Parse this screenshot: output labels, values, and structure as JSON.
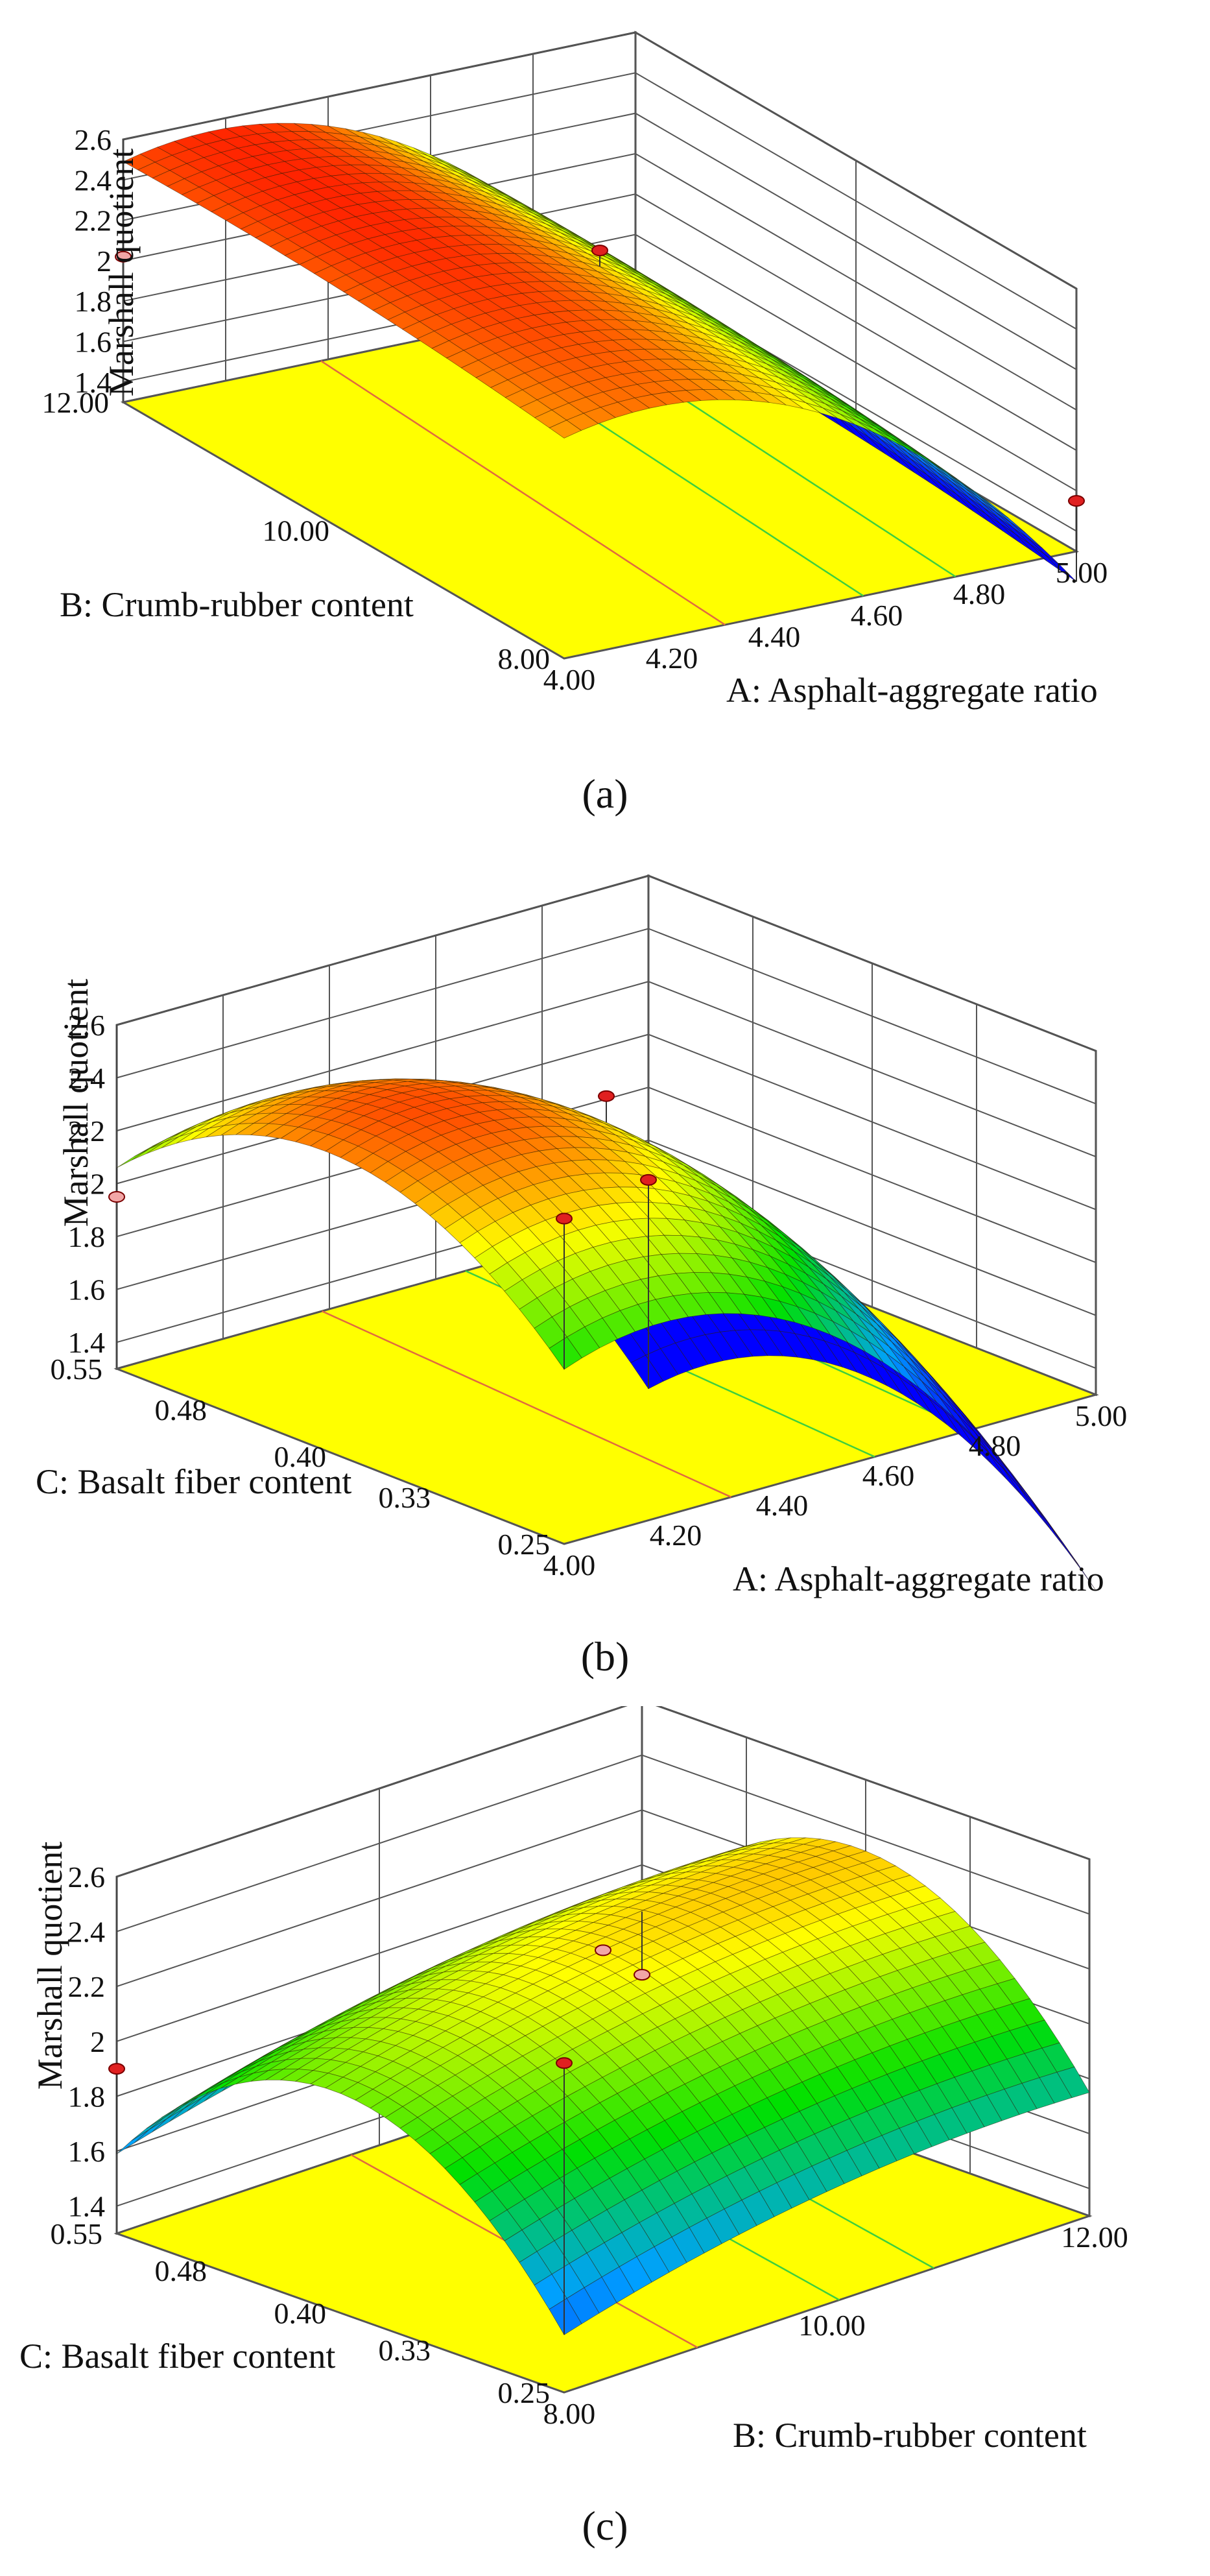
{
  "figure": {
    "captions": [
      "(a)",
      "(b)",
      "(c)"
    ]
  },
  "chart_data": [
    {
      "type": "surface3d",
      "panel": "a",
      "caption": "(a)",
      "zlabel": "Marshall quotient",
      "zticks": [
        "1.4",
        "1.6",
        "1.8",
        "2",
        "2.2",
        "2.4",
        "2.6"
      ],
      "zlim": [
        1.3,
        2.6
      ],
      "xlabel": "A: Asphalt-aggregate ratio",
      "xticks": [
        "4.00",
        "4.20",
        "4.40",
        "4.60",
        "4.80",
        "5.00"
      ],
      "xlim": [
        4.0,
        5.0
      ],
      "ylabel": "B: Crumb-rubber content",
      "yticks": [
        "8.00",
        "10.00",
        "12.00"
      ],
      "ylim": [
        8.0,
        12.0
      ],
      "colormap": [
        "#0000ff",
        "#00a0ff",
        "#00e000",
        "#ffff00",
        "#ff0000"
      ],
      "colorlim": [
        1.3,
        2.6
      ],
      "floor_color": "#ffff00",
      "surface": {
        "c0": 2.34,
        "ca": -0.62,
        "caa": -0.48,
        "cb": 0.05,
        "cbb": -0.04,
        "cab": 0.0
      },
      "design_points": [
        {
          "a": 4.0,
          "b": 12.0,
          "z": 2.02
        },
        {
          "a": 4.5,
          "b": 10.0,
          "z": 2.42
        },
        {
          "a": 5.0,
          "b": 8.0,
          "z": 1.55
        }
      ]
    },
    {
      "type": "surface3d",
      "panel": "b",
      "caption": "(b)",
      "zlabel": "Marshall quotient",
      "zticks": [
        "1.4",
        "1.6",
        "1.8",
        "2",
        "2.2",
        "2.4",
        "2.6"
      ],
      "zlim": [
        1.3,
        2.6
      ],
      "xlabel": "A: Asphalt-aggregate ratio",
      "xticks": [
        "4.00",
        "4.20",
        "4.40",
        "4.60",
        "4.80",
        "5.00"
      ],
      "xlim": [
        4.0,
        5.0
      ],
      "ylabel": "C: Basalt fiber content",
      "yticks": [
        "0.25",
        "0.33",
        "0.40",
        "0.48",
        "0.55"
      ],
      "ylim": [
        0.25,
        0.55
      ],
      "colormap": [
        "#0000ff",
        "#00a0ff",
        "#00e000",
        "#ffff00",
        "#ff0000"
      ],
      "colorlim": [
        1.3,
        2.6
      ],
      "floor_color": "#ffff00",
      "surface": {
        "c0": 2.28,
        "ca": -0.7,
        "caa": -0.55,
        "cb": 0.05,
        "cbb": -0.42,
        "cab": 0.0
      },
      "design_points": [
        {
          "a": 4.0,
          "b": 0.55,
          "z": 1.95
        },
        {
          "a": 4.5,
          "b": 0.4,
          "z": 2.38
        },
        {
          "a": 4.0,
          "b": 0.25,
          "z": 2.53
        },
        {
          "a": 5.0,
          "b": 0.55,
          "z": 1.45
        }
      ]
    },
    {
      "type": "surface3d",
      "panel": "c",
      "caption": "(c)",
      "zlabel": "Marshall quotient",
      "zticks": [
        "1.4",
        "1.6",
        "1.8",
        "2",
        "2.2",
        "2.4",
        "2.6"
      ],
      "zlim": [
        1.3,
        2.6
      ],
      "xlabel": "B: Crumb-rubber content",
      "xticks": [
        "8.00",
        "10.00",
        "12.00"
      ],
      "xlim": [
        8.0,
        12.0
      ],
      "ylabel": "C: Basalt fiber content",
      "yticks": [
        "0.25",
        "0.33",
        "0.40",
        "0.48",
        "0.55"
      ],
      "ylim": [
        0.25,
        0.55
      ],
      "colormap": [
        "#0000ff",
        "#00a0ff",
        "#00e000",
        "#ffff00",
        "#ff0000"
      ],
      "colorlim": [
        1.3,
        2.6
      ],
      "floor_color": "#ffff00",
      "surface": {
        "c0": 2.3,
        "ca": 0.12,
        "caa": -0.08,
        "cb": 0.04,
        "cbb": -0.55,
        "cab": 0.0
      },
      "design_points": [
        {
          "a": 8.0,
          "b": 0.55,
          "z": 1.9
        },
        {
          "a": 10.0,
          "b": 0.4,
          "z": 2.3
        },
        {
          "a": 8.0,
          "b": 0.25,
          "z": 2.5
        },
        {
          "a": 12.0,
          "b": 0.55,
          "z": 1.6
        }
      ]
    }
  ]
}
